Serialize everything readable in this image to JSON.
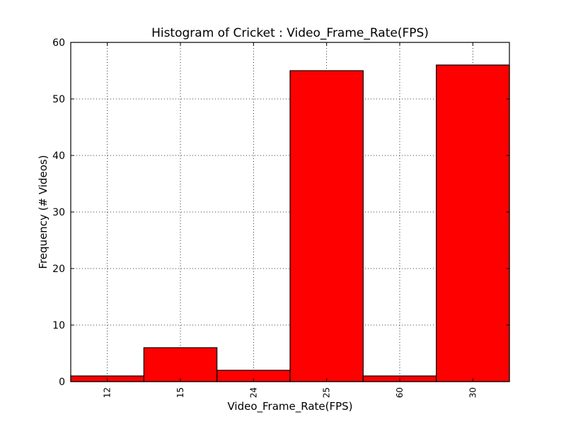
{
  "chart_data": {
    "type": "bar",
    "title": "Histogram of Cricket : Video_Frame_Rate(FPS)",
    "xlabel": "Video_Frame_Rate(FPS)",
    "ylabel": "Frequency (# Videos)",
    "categories": [
      "12",
      "15",
      "24",
      "25",
      "60",
      "30"
    ],
    "values": [
      1,
      6,
      2,
      55,
      1,
      56
    ],
    "ylim": [
      0,
      60
    ],
    "yticks": [
      "0",
      "10",
      "20",
      "30",
      "40",
      "50",
      "60"
    ],
    "grid": true,
    "bar_color": "#ff0000",
    "edge_color": "#000000"
  }
}
